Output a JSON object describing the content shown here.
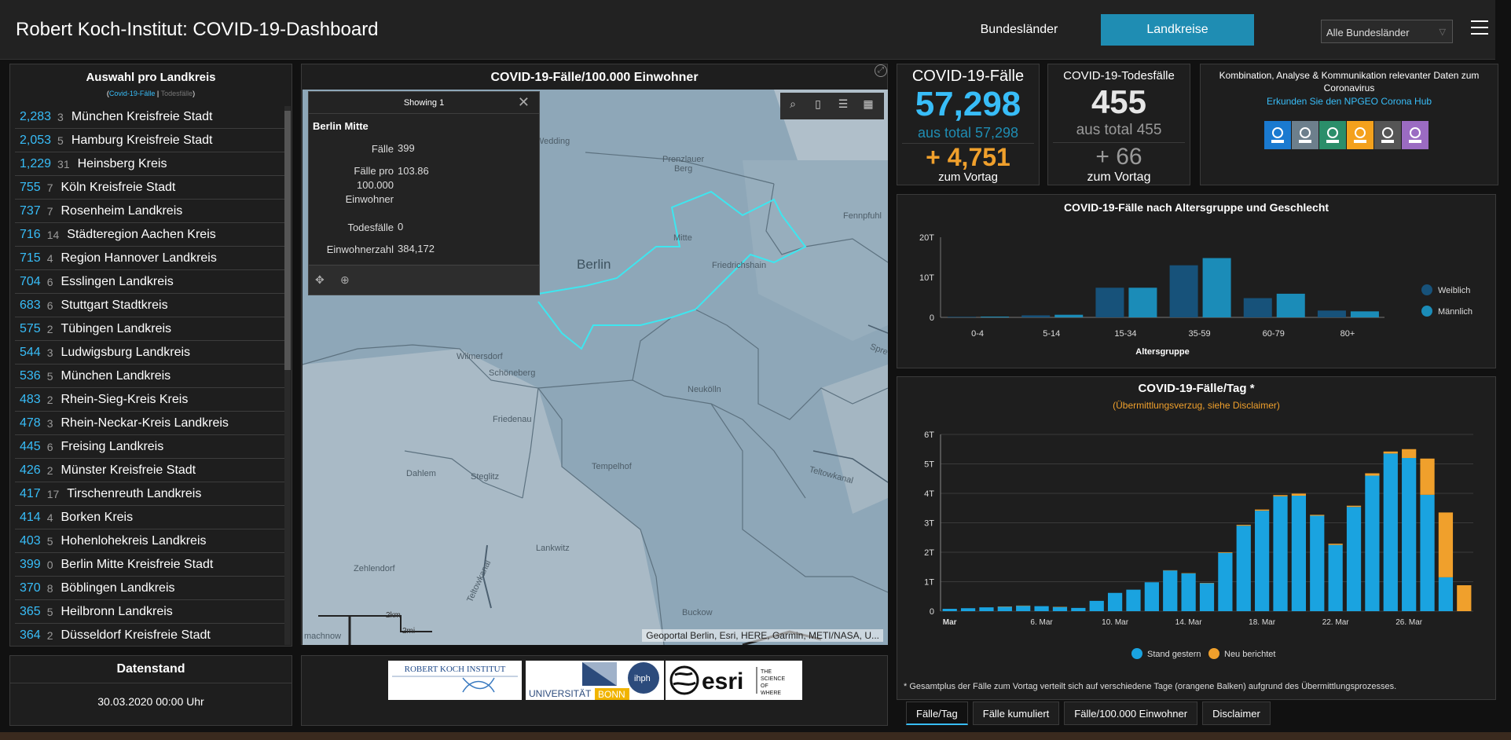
{
  "header": {
    "title": "Robert Koch-Institut: COVID-19-Dashboard",
    "btn_bundeslaender": "Bundesländer",
    "btn_landkreise": "Landkreise",
    "dropdown_value": "Alle Bundesländer"
  },
  "left": {
    "title": "Auswahl pro Landkreis",
    "sub_active": "Covid-19-Fälle",
    "sub_sep": "|",
    "sub_inactive": "Todesfälle",
    "rows": [
      {
        "n": "2,283",
        "d": "3",
        "name": "München Kreisfreie Stadt"
      },
      {
        "n": "2,053",
        "d": "5",
        "name": "Hamburg Kreisfreie Stadt"
      },
      {
        "n": "1,229",
        "d": "31",
        "name": "Heinsberg Kreis"
      },
      {
        "n": "755",
        "d": "7",
        "name": "Köln Kreisfreie Stadt"
      },
      {
        "n": "737",
        "d": "7",
        "name": "Rosenheim Landkreis"
      },
      {
        "n": "716",
        "d": "14",
        "name": "Städteregion Aachen Kreis"
      },
      {
        "n": "715",
        "d": "4",
        "name": "Region Hannover Landkreis"
      },
      {
        "n": "704",
        "d": "6",
        "name": "Esslingen Landkreis"
      },
      {
        "n": "683",
        "d": "6",
        "name": "Stuttgart Stadtkreis"
      },
      {
        "n": "575",
        "d": "2",
        "name": "Tübingen Landkreis"
      },
      {
        "n": "544",
        "d": "3",
        "name": "Ludwigsburg Landkreis"
      },
      {
        "n": "536",
        "d": "5",
        "name": "München Landkreis"
      },
      {
        "n": "483",
        "d": "2",
        "name": "Rhein-Sieg-Kreis Kreis"
      },
      {
        "n": "478",
        "d": "3",
        "name": "Rhein-Neckar-Kreis Landkreis"
      },
      {
        "n": "445",
        "d": "6",
        "name": "Freising Landkreis"
      },
      {
        "n": "426",
        "d": "2",
        "name": "Münster Kreisfreie Stadt"
      },
      {
        "n": "417",
        "d": "17",
        "name": "Tirschenreuth Landkreis"
      },
      {
        "n": "414",
        "d": "4",
        "name": "Borken Kreis"
      },
      {
        "n": "403",
        "d": "5",
        "name": "Hohenlohekreis Landkreis"
      },
      {
        "n": "399",
        "d": "0",
        "name": "Berlin Mitte Kreisfreie Stadt"
      },
      {
        "n": "370",
        "d": "8",
        "name": "Böblingen Landkreis"
      },
      {
        "n": "365",
        "d": "5",
        "name": "Heilbronn Landkreis"
      },
      {
        "n": "364",
        "d": "2",
        "name": "Düsseldorf Kreisfreie Stadt"
      }
    ]
  },
  "datenstand": {
    "title": "Datenstand",
    "value": "30.03.2020 00:00 Uhr"
  },
  "map": {
    "title": "COVID-19-Fälle/100.000 Einwohner",
    "attribution": "Geoportal Berlin, Esri, HERE, Garmin, METI/NASA, U...",
    "scale_km": "2km",
    "scale_mi": "2mi",
    "labels": {
      "berlin": "Berlin",
      "wedding": "Wedding",
      "prenzlauer": "Prenzlauer\nBerg",
      "mitte": "Mitte",
      "friedrichshain": "Friedrichshain",
      "wilmersdorf": "Wilmersdorf",
      "schoeneberg": "Schöneberg",
      "neukoelln": "Neukölln",
      "friedenau": "Friedenau",
      "tempelhof": "Tempelhof",
      "dahlem": "Dahlem",
      "steglitz": "Steglitz",
      "zehlendorf": "Zehlendorf",
      "lankwitz": "Lankwitz",
      "buckow": "Buckow",
      "teltowkanal1": "Teltowkanal",
      "teltowkanal2": "Teltowkanal",
      "fennpfuhl": "Fennpfuhl",
      "machnow": "machnow",
      "spree": "Spre"
    },
    "popup": {
      "header": "Showing 1",
      "name": "Berlin Mitte",
      "fields": [
        {
          "k": "Fälle",
          "v": "399"
        },
        {
          "k": "Fälle pro 100.000 Einwohner",
          "v": "103.86"
        },
        {
          "k": "Todesfälle",
          "v": "0"
        },
        {
          "k": "Einwohnerzahl",
          "v": "384,172"
        }
      ]
    }
  },
  "logos": {
    "rki": "ROBERT KOCH INSTITUT",
    "bonn": "UNIVERSITÄT",
    "bonn2": "BONN",
    "ihph": "ihph",
    "esri": "esri",
    "esri_tag": "THE SCIENCE OF WHERE"
  },
  "kpi_cases": {
    "title": "COVID-19-Fälle",
    "value": "57,298",
    "total": "aus total 57,298",
    "delta": "+ 4,751",
    "vortag": "zum Vortag"
  },
  "kpi_deaths": {
    "title": "COVID-19-Todesfälle",
    "value": "455",
    "total": "aus total 455",
    "delta": "+ 66",
    "vortag": "zum Vortag"
  },
  "kpi_hub": {
    "text": "Kombination, Analyse & Kommunikation relevanter Daten zum Coronavirus",
    "link": "Erkunden Sie den NPGEO Corona Hub",
    "icons": [
      "hands-icon",
      "location-person-icon",
      "heart-pulse-icon",
      "stairs-icon",
      "car-icon",
      "building-icon"
    ],
    "icon_colors": [
      "#1a7ad0",
      "#6d7f8c",
      "#2b8e6a",
      "#f4a11d",
      "#555555",
      "#9b6bc2"
    ]
  },
  "age_chart": {
    "title": "COVID-19-Fälle nach Altersgruppe und Geschlecht"
  },
  "daily_chart": {
    "title": "COVID-19-Fälle/Tag *",
    "subtitle": "(Übermittlungsverzug, siehe Disclaimer)",
    "footnote": "* Gesamtplus der Fälle zum Vortag verteilt sich auf verschiedene Tage (orangene Balken) aufgrund des Übermittlungsprozesses."
  },
  "tabs": [
    "Fälle/Tag",
    "Fälle kumuliert",
    "Fälle/100.000 Einwohner",
    "Disclaimer"
  ],
  "colors": {
    "accent": "#1f8db3",
    "blue": "#38bdf8",
    "orange": "#f0a02c",
    "weiblich": "#17527a",
    "maennlich": "#1b8cb8",
    "bar_blue": "#1aa3e0"
  },
  "chart_data": [
    {
      "type": "bar",
      "title": "COVID-19-Fälle nach Altersgruppe und Geschlecht",
      "xlabel": "Altersgruppe",
      "ylabel": "",
      "categories": [
        "0-4",
        "5-14",
        "15-34",
        "35-59",
        "60-79",
        "80+"
      ],
      "series": [
        {
          "name": "Weiblich",
          "values": [
            150,
            500,
            7400,
            13000,
            4800,
            1700
          ]
        },
        {
          "name": "Männlich",
          "values": [
            200,
            650,
            7400,
            14800,
            5900,
            1500
          ]
        }
      ],
      "ylim": [
        0,
        20000
      ],
      "yticks": [
        "0",
        "10T",
        "20T"
      ],
      "legend": "right",
      "grid": false
    },
    {
      "type": "bar",
      "stacked": true,
      "title": "COVID-19-Fälle/Tag *",
      "xlabel": "",
      "ylabel": "",
      "categories": [
        "Mar",
        "Mar2",
        "Mar3",
        "Mar4",
        "Mar5",
        "6. Mar",
        "Mar7",
        "Mar8",
        "Mar9",
        "10. Mar",
        "Mar11",
        "Mar12",
        "Mar13",
        "14. Mar",
        "Mar15",
        "Mar16",
        "Mar17",
        "18. Mar",
        "Mar19",
        "Mar20",
        "Mar21",
        "22. Mar",
        "Mar23",
        "Mar24",
        "Mar25",
        "26. Mar",
        "Mar27",
        "Mar28",
        "Mar29"
      ],
      "xtick_labels": [
        "Mar",
        "6. Mar",
        "10. Mar",
        "14. Mar",
        "18. Mar",
        "22. Mar",
        "26. Mar"
      ],
      "series": [
        {
          "name": "Stand gestern",
          "values": [
            80,
            100,
            130,
            150,
            180,
            170,
            140,
            110,
            350,
            620,
            730,
            980,
            1380,
            1280,
            950,
            1980,
            2900,
            3410,
            3900,
            3920,
            3240,
            2250,
            3540,
            4600,
            5350,
            5200,
            3950,
            1150,
            0
          ]
        },
        {
          "name": "Neu berichtet",
          "values": [
            0,
            0,
            0,
            10,
            10,
            0,
            10,
            0,
            0,
            0,
            0,
            0,
            10,
            10,
            10,
            20,
            30,
            40,
            40,
            70,
            30,
            40,
            40,
            80,
            70,
            300,
            1230,
            2200,
            880
          ]
        }
      ],
      "ylim": [
        0,
        6000
      ],
      "yticks": [
        "0",
        "1T",
        "2T",
        "3T",
        "4T",
        "5T",
        "6T"
      ],
      "legend": "bottom",
      "grid": true
    }
  ]
}
